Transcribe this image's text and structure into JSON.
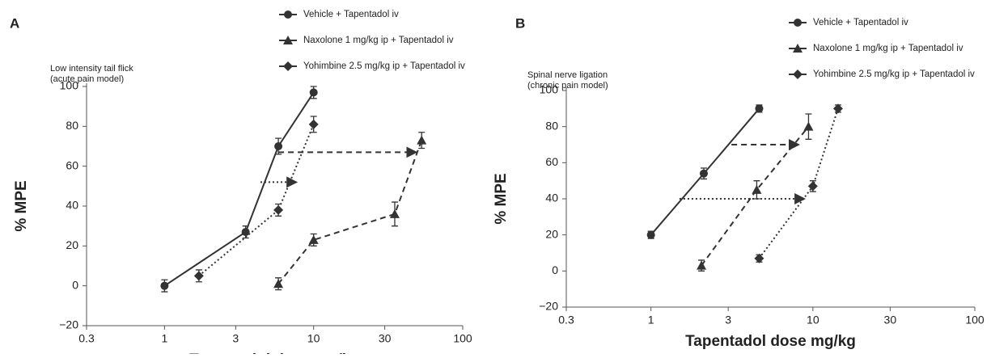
{
  "chart_data": [
    {
      "type": "line",
      "panel": "A",
      "annotation": [
        "Low intensity tail flick",
        "(acute pain model)"
      ],
      "xlabel": "Tapentadol dose mg/kg",
      "ylabel": "% MPE",
      "xscale": "log",
      "xlim": [
        0.3,
        100
      ],
      "xticks": [
        0.3,
        1,
        3,
        10,
        30,
        100
      ],
      "ylim": [
        -20,
        100
      ],
      "yticks": [
        {
          "value": -20,
          "label": "−20"
        },
        0,
        20,
        40,
        60,
        80,
        100
      ],
      "series": [
        {
          "name": "Vehicle + Tapentadol iv",
          "color": "#333333",
          "marker": "circle",
          "line": "solid",
          "x": [
            1,
            3.5,
            5.8,
            10
          ],
          "values": [
            0,
            27,
            70,
            97
          ],
          "errors": [
            3,
            3,
            4,
            3
          ]
        },
        {
          "name": "Naxolone 1 mg/kg ip + Tapentadol iv",
          "color": "#333333",
          "marker": "triangle",
          "line": "dashed",
          "x": [
            5.8,
            10,
            35,
            53
          ],
          "values": [
            1,
            23,
            36,
            73
          ],
          "errors": [
            3,
            3,
            6,
            4
          ]
        },
        {
          "name": "Yohimbine 2.5 mg/kg ip + Tapentadol iv",
          "color": "#333333",
          "marker": "diamond",
          "line": "dotted",
          "x": [
            1.7,
            5.8,
            10
          ],
          "values": [
            5,
            38,
            81
          ],
          "errors": [
            3,
            3,
            4
          ]
        }
      ],
      "arrows": [
        {
          "line": "dashed",
          "x": [
            5.8,
            49
          ],
          "y": [
            67,
            67
          ]
        },
        {
          "line": "dotted",
          "x": [
            4.4,
            7.7
          ],
          "y": [
            52,
            52
          ]
        }
      ]
    },
    {
      "type": "line",
      "panel": "B",
      "annotation": [
        "Spinal nerve ligation",
        "(chronic pain model)"
      ],
      "xlabel": "Tapentadol dose mg/kg",
      "ylabel": "% MPE",
      "xscale": "log",
      "xlim": [
        0.3,
        100
      ],
      "xticks": [
        0.3,
        1,
        3,
        10,
        30,
        100
      ],
      "ylim": [
        -20,
        100
      ],
      "yticks": [
        {
          "value": -20,
          "label": "−20"
        },
        0,
        20,
        40,
        60,
        80,
        100
      ],
      "series": [
        {
          "name": "Vehicle + Tapentadol iv",
          "color": "#333333",
          "marker": "circle",
          "line": "solid",
          "x": [
            1,
            2.12,
            4.66
          ],
          "values": [
            20,
            54,
            90
          ],
          "errors": [
            2,
            3,
            2
          ]
        },
        {
          "name": "Naxolone 1 mg/kg ip + Tapentadol iv",
          "color": "#333333",
          "marker": "triangle",
          "line": "dashed",
          "x": [
            2.05,
            4.5,
            9.4
          ],
          "values": [
            3,
            45,
            80
          ],
          "errors": [
            3,
            5,
            7
          ]
        },
        {
          "name": "Yohimbine 2.5 mg/kg ip + Tapentadol iv",
          "color": "#333333",
          "marker": "diamond",
          "line": "dotted",
          "x": [
            4.66,
            10,
            14.3
          ],
          "values": [
            7,
            47,
            90
          ],
          "errors": [
            2,
            3,
            2
          ]
        }
      ],
      "arrows": [
        {
          "line": "dashed",
          "x": [
            3.14,
            8.2
          ],
          "y": [
            70,
            70
          ]
        },
        {
          "line": "dotted",
          "x": [
            1.5,
            8.9
          ],
          "y": [
            40,
            40
          ]
        }
      ]
    }
  ]
}
